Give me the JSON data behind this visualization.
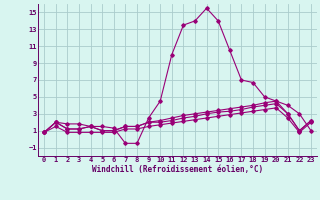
{
  "xlabel": "Windchill (Refroidissement éolien,°C)",
  "bg_color": "#d8f5f0",
  "grid_color": "#aacccc",
  "line_color": "#990077",
  "ylim": [
    -2,
    16
  ],
  "xlim": [
    -0.5,
    23.5
  ],
  "yticks": [
    -1,
    1,
    3,
    5,
    7,
    9,
    11,
    13,
    15
  ],
  "xticks": [
    0,
    1,
    2,
    3,
    4,
    5,
    6,
    7,
    8,
    9,
    10,
    11,
    12,
    13,
    14,
    15,
    16,
    17,
    18,
    19,
    20,
    21,
    22,
    23
  ],
  "series": [
    [
      0.8,
      2.0,
      1.8,
      1.8,
      1.5,
      1.5,
      1.3,
      -0.5,
      -0.5,
      2.5,
      4.5,
      10.0,
      13.5,
      14.0,
      15.5,
      14.0,
      10.5,
      7.0,
      6.7,
      5.0,
      4.5,
      4.0,
      3.0,
      1.0
    ],
    [
      0.8,
      2.0,
      1.2,
      1.2,
      1.5,
      1.0,
      1.0,
      1.5,
      1.5,
      2.0,
      2.0,
      2.2,
      2.5,
      2.7,
      3.0,
      3.2,
      3.3,
      3.5,
      3.8,
      4.0,
      4.2,
      3.0,
      1.0,
      2.2
    ],
    [
      0.8,
      2.0,
      1.2,
      1.2,
      1.5,
      1.0,
      1.0,
      1.5,
      1.5,
      2.0,
      2.2,
      2.5,
      2.8,
      3.0,
      3.2,
      3.4,
      3.6,
      3.8,
      4.0,
      4.3,
      4.5,
      3.0,
      1.0,
      2.2
    ],
    [
      0.8,
      1.5,
      0.8,
      0.8,
      0.8,
      0.8,
      0.8,
      1.2,
      1.2,
      1.5,
      1.7,
      1.9,
      2.1,
      2.3,
      2.5,
      2.7,
      2.9,
      3.1,
      3.3,
      3.5,
      3.7,
      2.5,
      0.8,
      2.0
    ]
  ],
  "tick_fontsize": 5.0,
  "xlabel_fontsize": 5.5
}
